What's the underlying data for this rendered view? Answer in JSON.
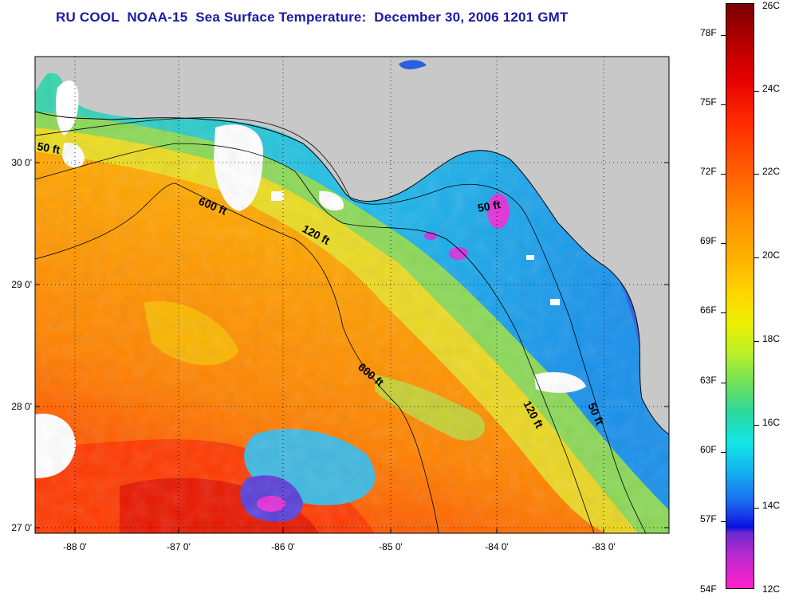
{
  "title": "RU COOL  NOAA-15  Sea Surface Temperature:  December 30, 2006 1201 GMT",
  "map": {
    "latitude_labels": [
      "30 0'",
      "29 0'",
      "28 0'",
      "27 0'"
    ],
    "longitude_labels": [
      "-88 0'",
      "-87 0'",
      "-86 0'",
      "-85 0'",
      "-84 0'",
      "-83 0'"
    ],
    "contour_labels": [
      "50 ft",
      "600 ft",
      "120 ft",
      "50 ft",
      "600 ft",
      "120 ft",
      "50 ft"
    ],
    "colors": {
      "land": "#c8c8c8",
      "cloud": "#ffffff",
      "deep_warm": "#ff8a00",
      "shelf_yellow": "#e0e830",
      "shelf_cool": "#28c8f0",
      "coastal_cold": "#2a6ee8",
      "coldest": "#e030e0"
    }
  },
  "colorbar": {
    "celsius_labels": [
      "26C",
      "24C",
      "22C",
      "20C",
      "18C",
      "16C",
      "14C",
      "12C"
    ],
    "fahrenheit_labels": [
      "78F",
      "75F",
      "72F",
      "69F",
      "66F",
      "63F",
      "60F",
      "57F",
      "54F"
    ]
  }
}
